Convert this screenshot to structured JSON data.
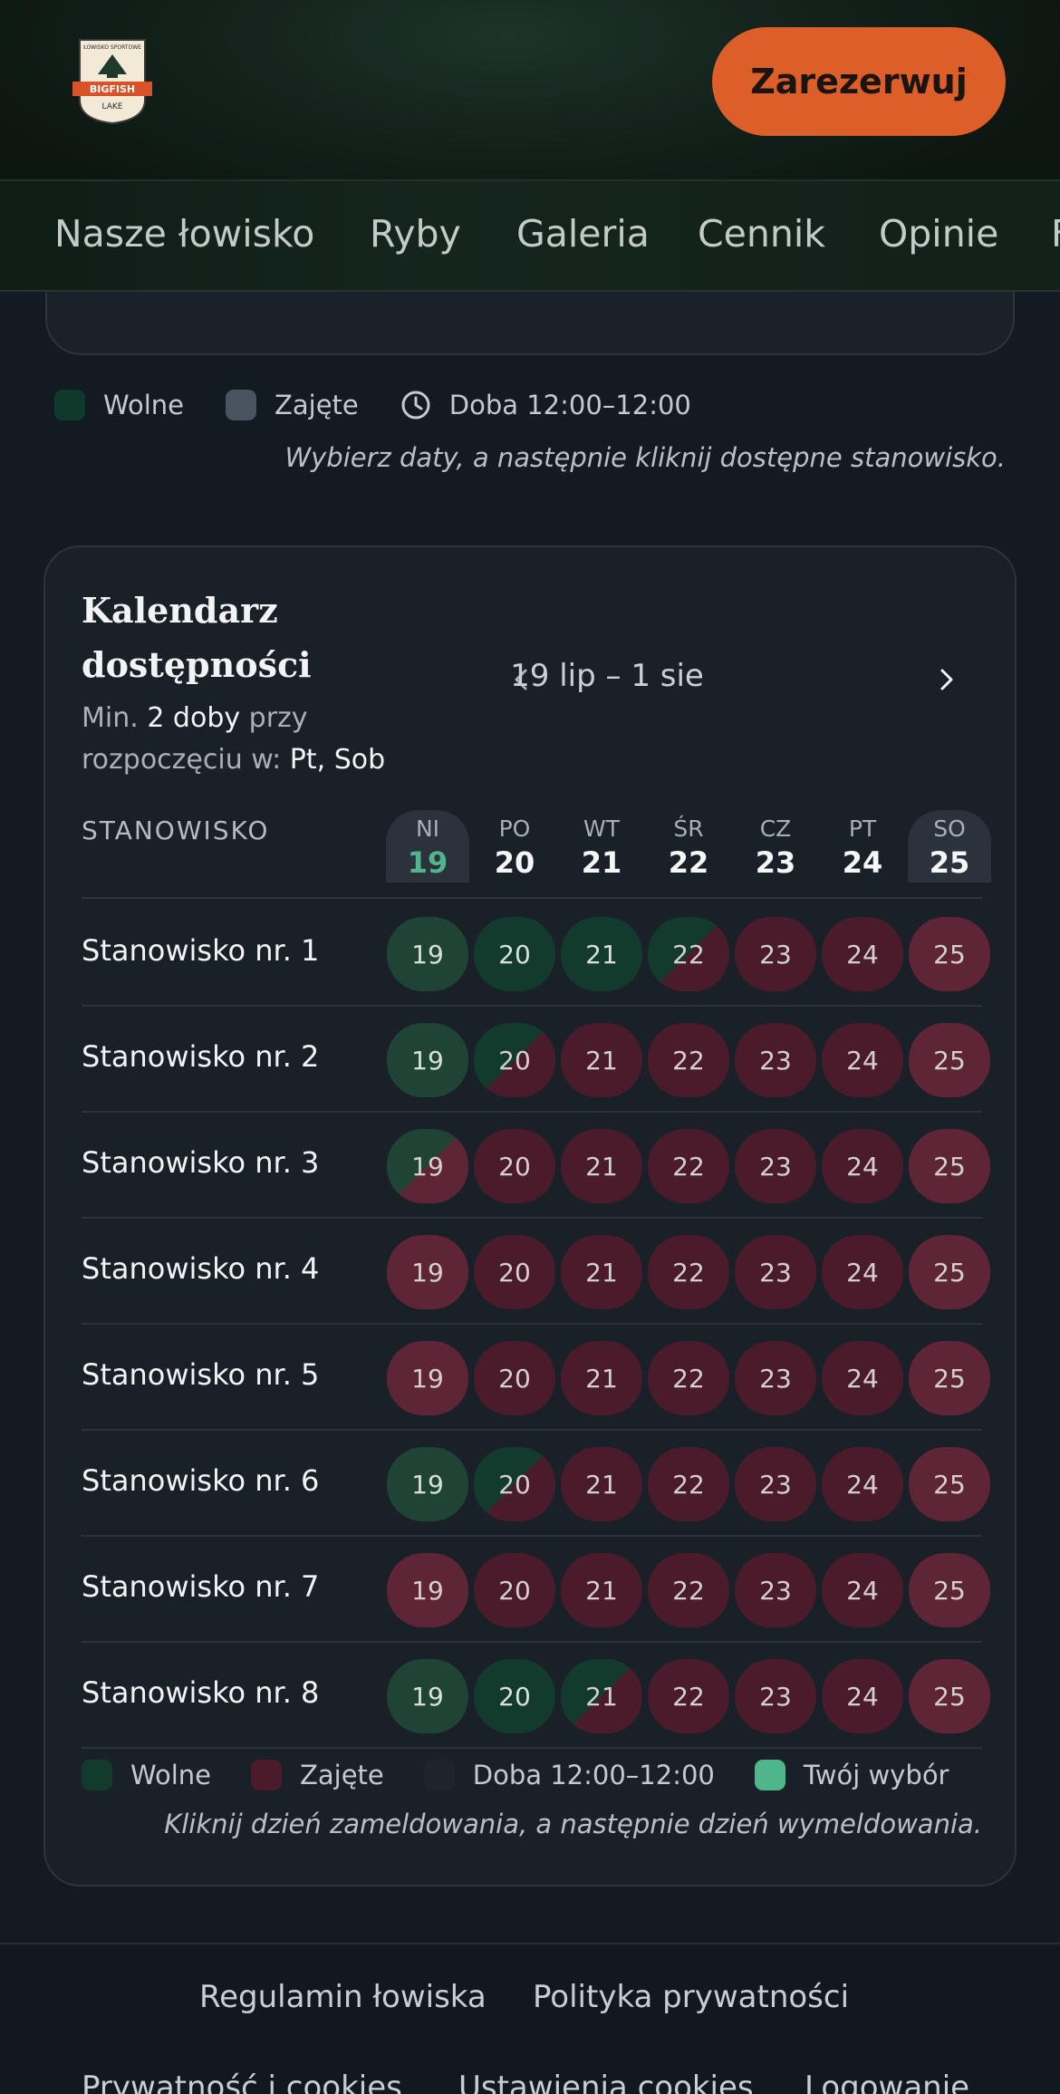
{
  "header": {
    "logo": {
      "top": "ŁOWISKO SPORTOWE",
      "middle": "BIGFISH",
      "bottom": "LAKE"
    },
    "reserve_label": "Zarezerwuj"
  },
  "nav": {
    "items": [
      "Nasze łowisko",
      "Ryby",
      "Galeria",
      "Cennik",
      "Opinie",
      "F"
    ]
  },
  "legend_top": {
    "free": "Wolne",
    "busy": "Zajęte",
    "doba": "Doba 12:00–12:00",
    "hint": "Wybierz daty, a następnie kliknij dostępne stanowisko."
  },
  "calendar": {
    "title_line1": "Kalendarz",
    "title_line2": "dostępności",
    "sub_pre": "Min. ",
    "sub_min": "2 doby",
    "sub_mid": " przy",
    "sub_line2": "rozpoczęciu w: ",
    "sub_days": "Pt, Sob",
    "range": "19 lip – 1 sie",
    "column_header": "STANOWISKO",
    "days": [
      {
        "name": "NI",
        "num": "19"
      },
      {
        "name": "PO",
        "num": "20"
      },
      {
        "name": "WT",
        "num": "21"
      },
      {
        "name": "ŚR",
        "num": "22"
      },
      {
        "name": "CZ",
        "num": "23"
      },
      {
        "name": "PT",
        "num": "24"
      },
      {
        "name": "SO",
        "num": "25"
      }
    ],
    "rows": [
      {
        "label": "Stanowisko nr. 1",
        "status": [
          "free",
          "free",
          "free",
          "fb",
          "busy",
          "busy",
          "busy"
        ]
      },
      {
        "label": "Stanowisko nr. 2",
        "status": [
          "free",
          "fb",
          "busy",
          "busy",
          "busy",
          "busy",
          "busy"
        ]
      },
      {
        "label": "Stanowisko nr. 3",
        "status": [
          "fb",
          "busy",
          "busy",
          "busy",
          "busy",
          "busy",
          "busy"
        ]
      },
      {
        "label": "Stanowisko nr. 4",
        "status": [
          "busy",
          "busy",
          "busy",
          "busy",
          "busy",
          "busy",
          "busy"
        ]
      },
      {
        "label": "Stanowisko nr. 5",
        "status": [
          "busy",
          "busy",
          "busy",
          "busy",
          "busy",
          "busy",
          "busy"
        ]
      },
      {
        "label": "Stanowisko nr. 6",
        "status": [
          "free",
          "fb",
          "busy",
          "busy",
          "busy",
          "busy",
          "busy"
        ]
      },
      {
        "label": "Stanowisko nr. 7",
        "status": [
          "busy",
          "busy",
          "busy",
          "busy",
          "busy",
          "busy",
          "busy"
        ]
      },
      {
        "label": "Stanowisko nr. 8",
        "status": [
          "free",
          "free",
          "fb",
          "busy",
          "busy",
          "busy",
          "busy"
        ]
      }
    ],
    "legend": {
      "free": "Wolne",
      "busy": "Zajęte",
      "doba": "Doba 12:00–12:00",
      "selection": "Twój wybór"
    },
    "hint": "Kliknij dzień zameldowania, a następnie dzień wymeldowania."
  },
  "footer": {
    "links_row1": [
      "Regulamin łowiska",
      "Polityka prywatności"
    ],
    "links_row2": [
      "Prywatność i cookies",
      "Ustawienia cookies",
      "Logowanie"
    ]
  },
  "colors": {
    "accent": "#dc5f2a",
    "free": "#123b2d",
    "busy": "#4a1b2a",
    "selection": "#4fb689",
    "today": "#4fb689"
  }
}
